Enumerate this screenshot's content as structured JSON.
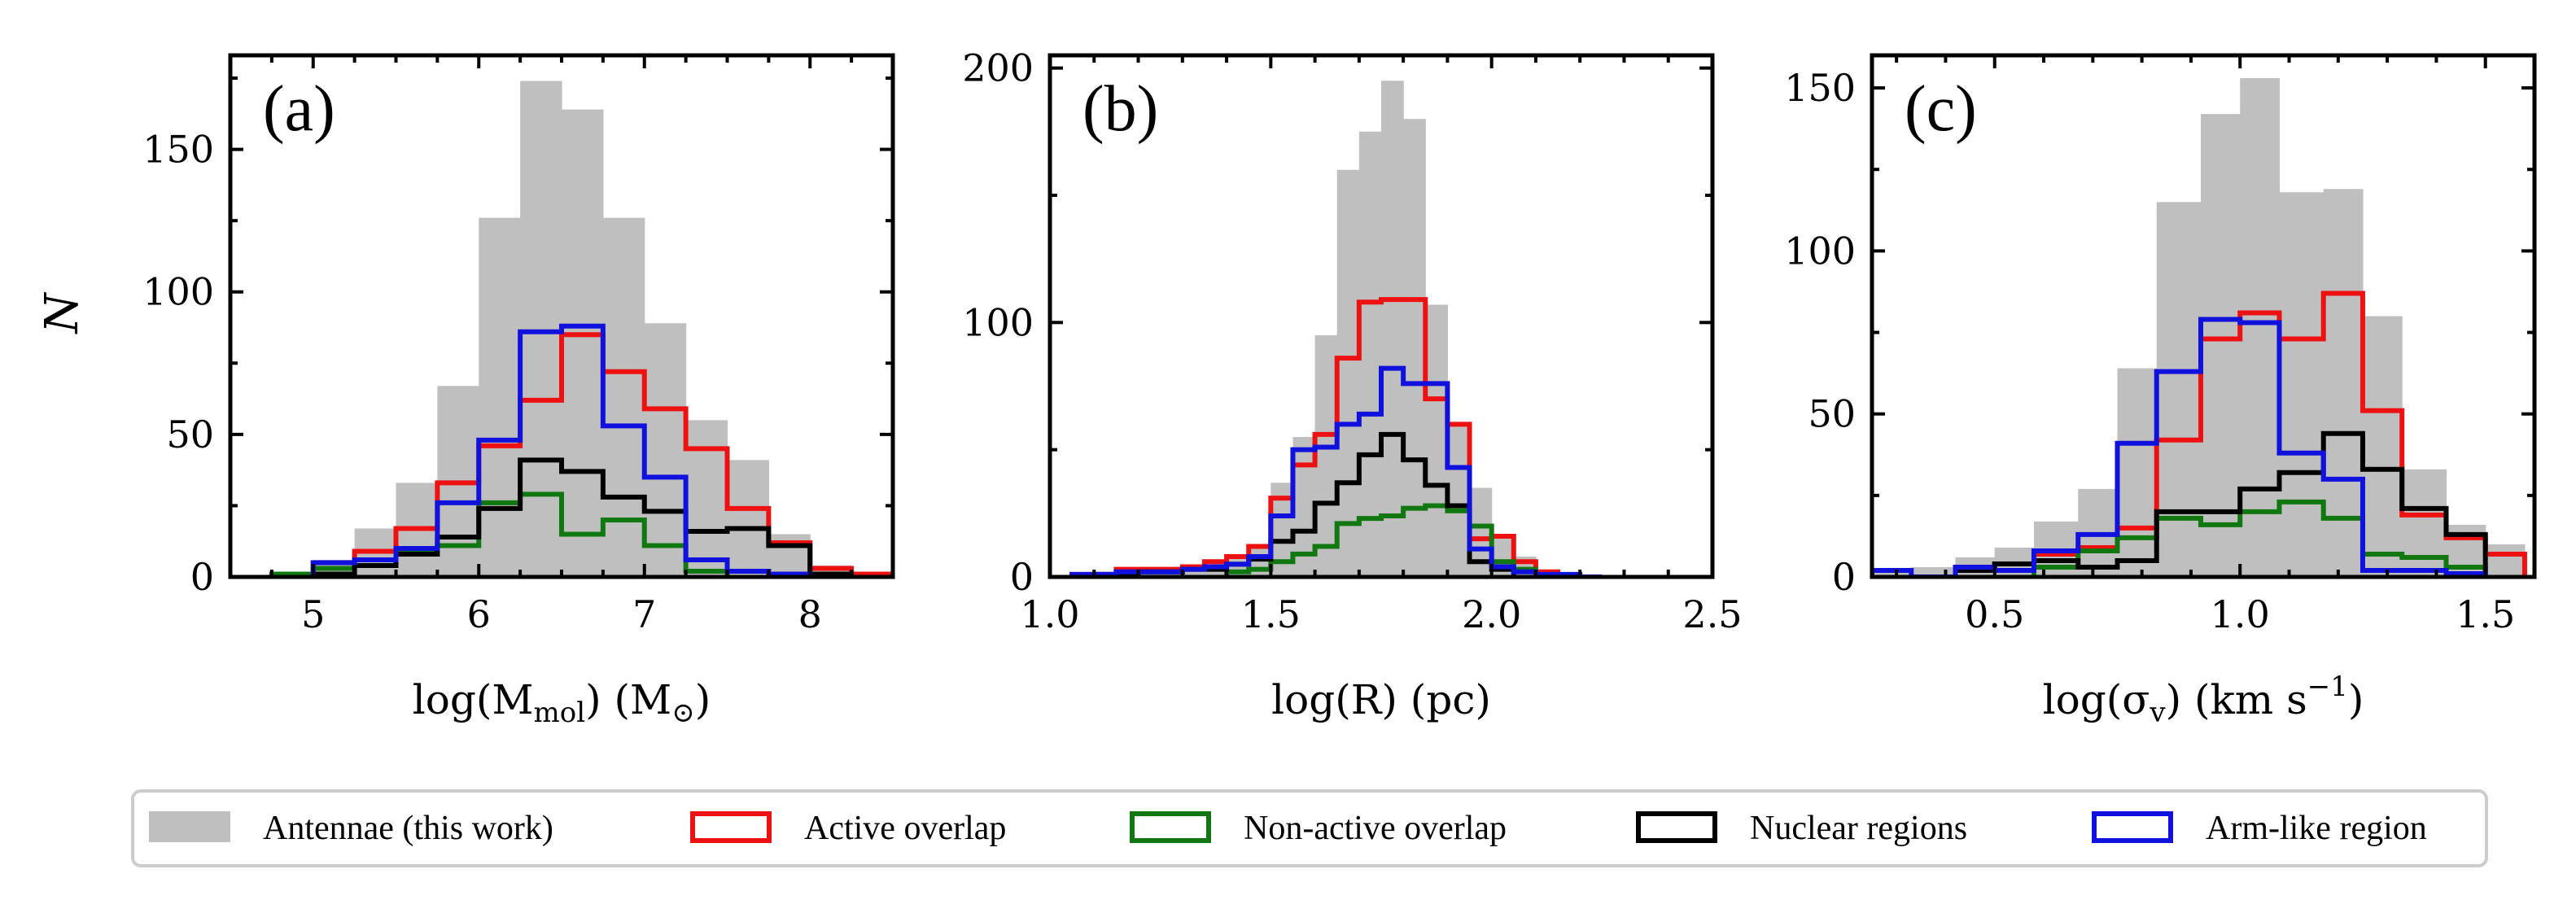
{
  "figure": {
    "ylabel": "N",
    "legend": [
      {
        "key": "antennae",
        "label": "Antennae (this work)",
        "color": "#bfbfbf",
        "style": "filled"
      },
      {
        "key": "active",
        "label": "Active overlap",
        "color": "#ee1111",
        "style": "step"
      },
      {
        "key": "nonactive",
        "label": "Non-active overlap",
        "color": "#117711",
        "style": "step"
      },
      {
        "key": "nuclear",
        "label": "Nuclear regions",
        "color": "#000000",
        "style": "step"
      },
      {
        "key": "arm",
        "label": "Arm-like region",
        "color": "#1111dd",
        "style": "step"
      }
    ]
  },
  "chart_data": [
    {
      "type": "histogram",
      "panel": "(a)",
      "xlabel_pre": "log(M",
      "xlabel_sub": "mol",
      "xlabel_mid": ") (M",
      "xlabel_sub2": "⊙",
      "xlabel_post": ")",
      "xlim": [
        4.5,
        8.5
      ],
      "ylim": [
        0,
        183
      ],
      "xticks": [
        5,
        6,
        7,
        8
      ],
      "xtick_labels": [
        "5",
        "6",
        "7",
        "8"
      ],
      "yticks": [
        0,
        50,
        100,
        150
      ],
      "ytick_labels": [
        "0",
        "50",
        "100",
        "150"
      ],
      "x_minor_step": 0.25,
      "y_minor_step": 25,
      "series": [
        {
          "key": "antennae",
          "edges": [
            4.75,
            5.0,
            5.25,
            5.5,
            5.75,
            6.0,
            6.25,
            6.5,
            6.75,
            7.0,
            7.25,
            7.5,
            7.75,
            8.0,
            8.25
          ],
          "values": [
            1,
            6,
            17,
            33,
            67,
            126,
            174,
            164,
            126,
            89,
            55,
            41,
            15,
            4
          ]
        },
        {
          "key": "active",
          "edges": [
            4.75,
            5.0,
            5.25,
            5.5,
            5.75,
            6.0,
            6.25,
            6.5,
            6.75,
            7.0,
            7.25,
            7.5,
            7.75,
            8.0,
            8.25,
            8.5
          ],
          "values": [
            1,
            5,
            9,
            17,
            33,
            46,
            62,
            85,
            72,
            59,
            45,
            24,
            12,
            3,
            1
          ]
        },
        {
          "key": "nonactive",
          "edges": [
            4.75,
            5.0,
            5.25,
            5.5,
            5.75,
            6.0,
            6.25,
            6.5,
            6.75,
            7.0,
            7.25,
            7.5
          ],
          "values": [
            1,
            3,
            4,
            9,
            11,
            26,
            29,
            15,
            20,
            11,
            2
          ]
        },
        {
          "key": "nuclear",
          "edges": [
            5.0,
            5.25,
            5.5,
            5.75,
            6.0,
            6.25,
            6.5,
            6.75,
            7.0,
            7.25,
            7.5,
            7.75,
            8.0,
            8.25
          ],
          "values": [
            1,
            4,
            8,
            14,
            24,
            41,
            37,
            28,
            23,
            16,
            17,
            11,
            1
          ]
        },
        {
          "key": "arm",
          "edges": [
            5.0,
            5.25,
            5.5,
            5.75,
            6.0,
            6.25,
            6.5,
            6.75,
            7.0,
            7.25,
            7.5,
            7.75,
            8.0
          ],
          "values": [
            5,
            6,
            10,
            26,
            48,
            86,
            88,
            53,
            35,
            6,
            2,
            1
          ]
        }
      ]
    },
    {
      "type": "histogram",
      "panel": "(b)",
      "xlabel_pre": "log(R) (pc)",
      "xlim": [
        1.0,
        2.5
      ],
      "ylim": [
        0,
        205
      ],
      "xticks": [
        1.0,
        1.5,
        2.0,
        2.5
      ],
      "xtick_labels": [
        "1.0",
        "1.5",
        "2.0",
        "2.5"
      ],
      "yticks": [
        0,
        100,
        200
      ],
      "ytick_labels": [
        "0",
        "100",
        "200"
      ],
      "x_minor_step": 0.1,
      "y_minor_step": 50,
      "series": [
        {
          "key": "antennae",
          "edges": [
            1.2,
            1.25,
            1.3,
            1.35,
            1.4,
            1.45,
            1.5,
            1.55,
            1.6,
            1.65,
            1.7,
            1.75,
            1.8,
            1.85,
            1.9,
            1.95,
            2.0,
            2.05,
            2.1
          ],
          "values": [
            2,
            3,
            4,
            5,
            8,
            12,
            37,
            55,
            95,
            160,
            175,
            195,
            180,
            107,
            60,
            35,
            15,
            8
          ]
        },
        {
          "key": "active",
          "edges": [
            1.05,
            1.1,
            1.15,
            1.2,
            1.25,
            1.3,
            1.35,
            1.4,
            1.45,
            1.5,
            1.55,
            1.6,
            1.65,
            1.7,
            1.75,
            1.8,
            1.85,
            1.9,
            1.95,
            2.0,
            2.05,
            2.1,
            2.15
          ],
          "values": [
            1,
            1,
            3,
            3,
            3,
            4,
            6,
            8,
            12,
            31,
            44,
            56,
            86,
            108,
            109,
            109,
            70,
            60,
            15,
            16,
            6,
            2
          ]
        },
        {
          "key": "nonactive",
          "edges": [
            1.4,
            1.45,
            1.5,
            1.55,
            1.6,
            1.65,
            1.7,
            1.75,
            1.8,
            1.85,
            1.9,
            1.95,
            2.0,
            2.05,
            2.1
          ],
          "values": [
            2,
            3,
            6,
            9,
            12,
            21,
            23,
            24,
            27,
            28,
            26,
            20,
            6,
            3
          ]
        },
        {
          "key": "nuclear",
          "edges": [
            1.1,
            1.15,
            1.2,
            1.25,
            1.3,
            1.35,
            1.4,
            1.45,
            1.5,
            1.55,
            1.6,
            1.65,
            1.7,
            1.75,
            1.8,
            1.85,
            1.9,
            1.95,
            2.0,
            2.05
          ],
          "values": [
            1,
            1,
            2,
            2,
            3,
            3,
            5,
            7,
            14,
            18,
            29,
            37,
            48,
            56,
            46,
            36,
            28,
            6,
            3
          ]
        },
        {
          "key": "arm",
          "edges": [
            1.05,
            1.1,
            1.15,
            1.2,
            1.25,
            1.3,
            1.35,
            1.4,
            1.45,
            1.5,
            1.55,
            1.6,
            1.65,
            1.7,
            1.75,
            1.8,
            1.85,
            1.9,
            1.95,
            2.0,
            2.05,
            2.1,
            2.15,
            2.2,
            2.25
          ],
          "values": [
            1,
            1,
            2,
            2,
            2,
            3,
            4,
            5,
            8,
            24,
            50,
            51,
            60,
            64,
            82,
            76,
            76,
            43,
            11,
            4,
            2,
            1,
            1,
            0
          ]
        }
      ]
    },
    {
      "type": "histogram",
      "panel": "(c)",
      "xlabel_pre": "log(σ",
      "xlabel_sub": "v",
      "xlabel_mid": ") (km s",
      "xlabel_sup": "−1",
      "xlabel_post": ")",
      "xlim": [
        0.25,
        1.6
      ],
      "ylim": [
        0,
        160
      ],
      "xticks": [
        0.5,
        1.0,
        1.5
      ],
      "xtick_labels": [
        "0.5",
        "1.0",
        "1.5"
      ],
      "yticks": [
        0,
        50,
        100,
        150
      ],
      "ytick_labels": [
        "0",
        "50",
        "100",
        "150"
      ],
      "x_minor_step": 0.1,
      "y_minor_step": 25,
      "series": [
        {
          "key": "antennae",
          "edges": [
            0.25,
            0.33,
            0.42,
            0.5,
            0.58,
            0.67,
            0.75,
            0.83,
            0.92,
            1.0,
            1.08,
            1.17,
            1.25,
            1.33,
            1.42,
            1.5,
            1.58
          ],
          "values": [
            2,
            3,
            6,
            9,
            17,
            27,
            64,
            115,
            142,
            153,
            118,
            119,
            80,
            33,
            16,
            10
          ]
        },
        {
          "key": "active",
          "edges": [
            0.42,
            0.5,
            0.58,
            0.67,
            0.75,
            0.83,
            0.92,
            1.0,
            1.08,
            1.17,
            1.25,
            1.33,
            1.42,
            1.5,
            1.58
          ],
          "values": [
            3,
            4,
            7,
            9,
            15,
            42,
            73,
            81,
            73,
            87,
            51,
            19,
            12,
            7
          ]
        },
        {
          "key": "nonactive",
          "edges": [
            0.58,
            0.67,
            0.75,
            0.83,
            0.92,
            1.0,
            1.08,
            1.17,
            1.25,
            1.33,
            1.42,
            1.5
          ],
          "values": [
            3,
            8,
            12,
            18,
            16,
            20,
            23,
            18,
            7,
            6,
            3
          ]
        },
        {
          "key": "nuclear",
          "edges": [
            0.42,
            0.5,
            0.58,
            0.67,
            0.75,
            0.83,
            0.92,
            1.0,
            1.08,
            1.17,
            1.25,
            1.33,
            1.42,
            1.5
          ],
          "values": [
            2,
            4,
            5,
            3,
            5,
            20,
            20,
            27,
            32,
            44,
            33,
            21,
            13
          ]
        },
        {
          "key": "arm",
          "edges": [
            0.25,
            0.33,
            0.42,
            0.5,
            0.58,
            0.67,
            0.75,
            0.83,
            0.92,
            1.0,
            1.08,
            1.17,
            1.25,
            1.33,
            1.42,
            1.5
          ],
          "values": [
            2,
            0,
            3,
            2,
            8,
            13,
            41,
            63,
            79,
            78,
            38,
            30,
            2,
            2,
            1
          ]
        }
      ]
    }
  ]
}
